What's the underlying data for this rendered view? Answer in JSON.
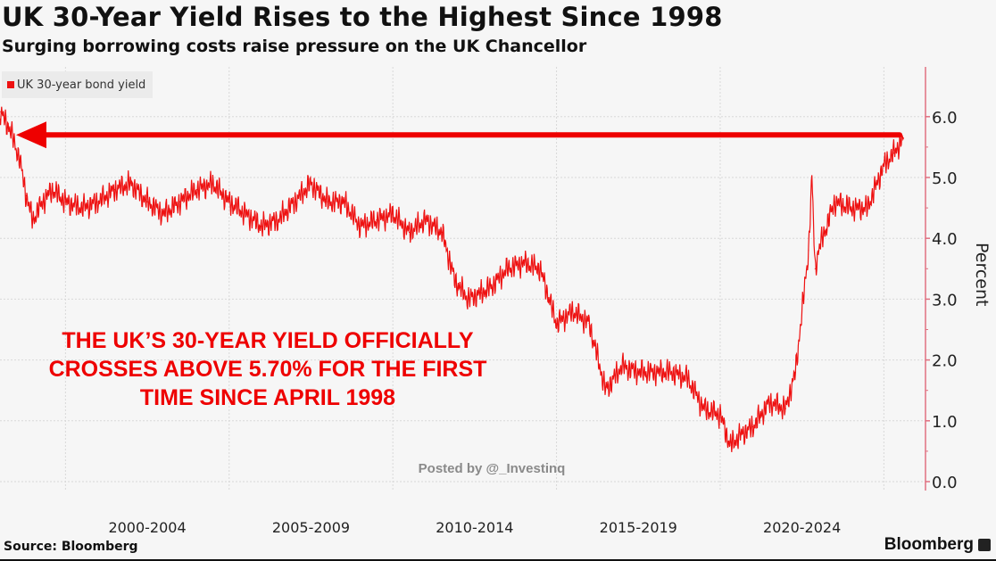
{
  "header": {
    "title": "UK 30-Year Yield Rises to the Highest Since 1998",
    "subtitle": "Surging borrowing costs raise pressure on the UK Chancellor"
  },
  "footer": {
    "source": "Source: Bloomberg",
    "brand": "Bloomberg"
  },
  "watermark": "Posted by @_Investinq",
  "colors": {
    "series": "#ee1111",
    "axis": "#e07080",
    "grid": "#d8d8d8",
    "background": "#f6f6f6"
  },
  "chart_data": {
    "type": "line",
    "title": "UK 30-Year Yield Rises to the Highest Since 1998",
    "subtitle": "Surging borrowing costs raise pressure on the UK Chancellor",
    "ylabel": "Percent",
    "ylim": [
      0,
      6.8
    ],
    "yticks": [
      "0.0",
      "1.0",
      "2.0",
      "3.0",
      "4.0",
      "5.0",
      "6.0"
    ],
    "xticks": [
      "2000-2004",
      "2005-2009",
      "2010-2014",
      "2015-2019",
      "2020-2024"
    ],
    "xlim": [
      1998.0,
      2026.2
    ],
    "grid": true,
    "y_axis_side": "right",
    "legend": {
      "position": "top-left",
      "entries": [
        "UK 30-year bond yield"
      ]
    },
    "series": [
      {
        "name": "UK 30-year bond yield",
        "x": [
          1998.0,
          1998.3,
          1998.6,
          1998.8,
          1999.0,
          1999.3,
          1999.6,
          2000.0,
          2000.5,
          2001.0,
          2001.5,
          2002.0,
          2002.5,
          2003.0,
          2003.5,
          2004.0,
          2004.5,
          2005.0,
          2005.5,
          2006.0,
          2006.5,
          2007.0,
          2007.5,
          2008.0,
          2008.5,
          2009.0,
          2009.5,
          2010.0,
          2010.5,
          2011.0,
          2011.5,
          2011.9,
          2012.3,
          2012.7,
          2013.0,
          2013.5,
          2014.0,
          2014.5,
          2015.0,
          2015.5,
          2016.0,
          2016.5,
          2017.0,
          2017.5,
          2018.0,
          2018.5,
          2019.0,
          2019.5,
          2020.0,
          2020.3,
          2020.7,
          2021.0,
          2021.5,
          2022.0,
          2022.3,
          2022.7,
          2022.8,
          2022.9,
          2023.0,
          2023.5,
          2024.0,
          2024.5,
          2025.0,
          2025.3,
          2025.6
        ],
        "values": [
          6.08,
          5.8,
          5.3,
          4.7,
          4.3,
          4.6,
          4.8,
          4.6,
          4.5,
          4.6,
          4.8,
          4.9,
          4.6,
          4.4,
          4.6,
          4.8,
          4.9,
          4.6,
          4.4,
          4.2,
          4.3,
          4.6,
          4.9,
          4.6,
          4.6,
          4.2,
          4.3,
          4.4,
          4.1,
          4.3,
          4.1,
          3.3,
          3.0,
          3.1,
          3.2,
          3.5,
          3.6,
          3.5,
          2.6,
          2.8,
          2.6,
          1.5,
          1.9,
          1.8,
          1.8,
          1.8,
          1.7,
          1.2,
          1.1,
          0.6,
          0.8,
          0.9,
          1.3,
          1.2,
          1.8,
          3.8,
          5.0,
          3.5,
          3.8,
          4.6,
          4.5,
          4.5,
          5.2,
          5.4,
          5.65
        ]
      }
    ],
    "annotations": {
      "text_lines": [
        "THE UK’S 30-YEAR YIELD OFFICIALLY",
        "CROSSES ABOVE 5.70% FOR THE FIRST",
        "TIME SINCE APRIL 1998"
      ],
      "arrow_level": 5.7
    }
  }
}
